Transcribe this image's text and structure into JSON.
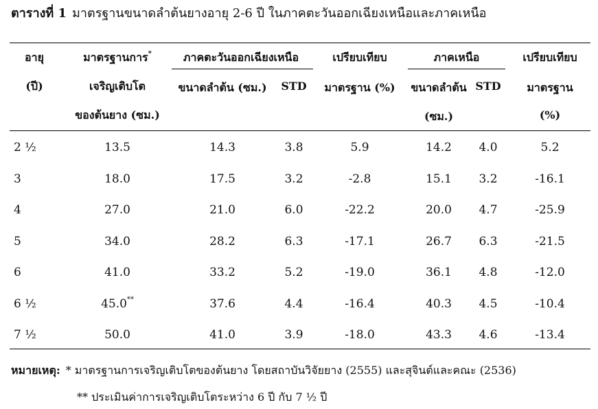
{
  "caption": {
    "label": "ตารางที่ 1",
    "text": "มาตรฐานขนาดลำต้นยางอายุ 2-6 ปี ในภาคตะวันออกเฉียงเหนือและภาคเหนือ"
  },
  "headers": {
    "age": [
      "อายุ",
      "(ปี)"
    ],
    "standard": [
      "มาตรฐานการ",
      "เจริญเติบโต",
      "ของต้นยาง (ซม.)"
    ],
    "standard_mark": "*",
    "northeast_group": "ภาคตะวันออกเฉียงเหนือ",
    "northeast_size": "ขนาดลำต้น (ซม.)",
    "northeast_std": "STD",
    "compare1": [
      "เปรียบเทียบ",
      "มาตรฐาน (%)"
    ],
    "north_group": "ภาคเหนือ",
    "north_size": [
      "ขนาดลำต้น",
      "(ซม.)"
    ],
    "north_std": "STD",
    "compare2": [
      "เปรียบเทียบ",
      "มาตรฐาน",
      "(%)"
    ]
  },
  "rows": [
    {
      "age": "2 ½",
      "standard": "13.5",
      "standard_mark": "",
      "ne_size": "14.3",
      "ne_std": "3.8",
      "ne_compare": "5.9",
      "n_size": "14.2",
      "n_std": "4.0",
      "n_compare": "5.2"
    },
    {
      "age": "3",
      "standard": "18.0",
      "standard_mark": "",
      "ne_size": "17.5",
      "ne_std": "3.2",
      "ne_compare": "-2.8",
      "n_size": "15.1",
      "n_std": "3.2",
      "n_compare": "-16.1"
    },
    {
      "age": "4",
      "standard": "27.0",
      "standard_mark": "",
      "ne_size": "21.0",
      "ne_std": "6.0",
      "ne_compare": "-22.2",
      "n_size": "20.0",
      "n_std": "4.7",
      "n_compare": "-25.9"
    },
    {
      "age": "5",
      "standard": "34.0",
      "standard_mark": "",
      "ne_size": "28.2",
      "ne_std": "6.3",
      "ne_compare": "-17.1",
      "n_size": "26.7",
      "n_std": "6.3",
      "n_compare": "-21.5"
    },
    {
      "age": "6",
      "standard": "41.0",
      "standard_mark": "",
      "ne_size": "33.2",
      "ne_std": "5.2",
      "ne_compare": "-19.0",
      "n_size": "36.1",
      "n_std": "4.8",
      "n_compare": "-12.0"
    },
    {
      "age": "6 ½",
      "standard": "45.0",
      "standard_mark": "**",
      "ne_size": "37.6",
      "ne_std": "4.4",
      "ne_compare": "-16.4",
      "n_size": "40.3",
      "n_std": "4.5",
      "n_compare": "-10.4"
    },
    {
      "age": "7 ½",
      "standard": "50.0",
      "standard_mark": "",
      "ne_size": "41.0",
      "ne_std": "3.9",
      "ne_compare": "-18.0",
      "n_size": "43.3",
      "n_std": "4.6",
      "n_compare": "-13.4"
    }
  ],
  "notes": {
    "label": "หมายเหตุ:",
    "note1": "* มาตรฐานการเจริญเติบโตของต้นยาง โดยสถาบันวิจัยยาง (2555) และสุจินต์และคณะ (2536)",
    "note2": "** ประเมินค่าการเจริญเติบโตระหว่าง 6 ปี กับ 7 ½ ปี"
  }
}
